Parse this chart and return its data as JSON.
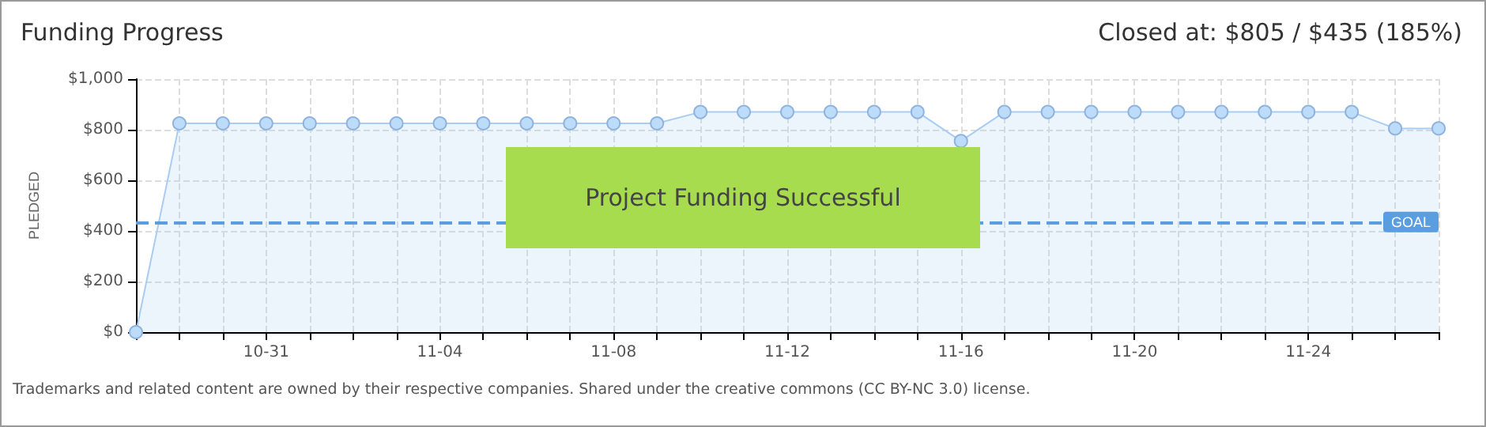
{
  "chart_data": {
    "type": "area",
    "title": "Funding Progress",
    "subtitle": "Closed at: $805 / $435 (185%)",
    "ylabel": "PLEDGED",
    "categories": [
      null,
      null,
      null,
      "10-31",
      null,
      null,
      null,
      "11-04",
      null,
      null,
      null,
      "11-08",
      null,
      null,
      null,
      "11-12",
      null,
      null,
      null,
      "11-16",
      null,
      null,
      null,
      "11-20",
      null,
      null,
      null,
      "11-24",
      null,
      null,
      null
    ],
    "series": [
      {
        "color": "#a9cdf2",
        "values": [
          0,
          825,
          825,
          825,
          825,
          825,
          825,
          825,
          825,
          825,
          825,
          825,
          825,
          870,
          870,
          870,
          870,
          870,
          870,
          755,
          870,
          870,
          870,
          870,
          870,
          870,
          870,
          870,
          870,
          805,
          805
        ]
      }
    ],
    "ylim": [
      0,
      1000
    ],
    "yticks": [
      {
        "value": 0,
        "label": "$0"
      },
      {
        "value": 200,
        "label": "$200"
      },
      {
        "value": 400,
        "label": "$400"
      },
      {
        "value": 600,
        "label": "$600"
      },
      {
        "value": 800,
        "label": "$800"
      },
      {
        "value": 1000,
        "label": "$1,000"
      }
    ],
    "ref_lines": [
      {
        "axis": "y",
        "value": 435,
        "label": "GOAL",
        "color": "#5b9ee0",
        "line_style": "dashed"
      }
    ],
    "annotations": [
      "Project Funding Successful",
      "Trademarks and related content are owned by their respective companies. Shared under the creative commons (CC BY-NC 3.0) license."
    ],
    "grid": true,
    "marker": "circle",
    "line_style": "solid"
  }
}
